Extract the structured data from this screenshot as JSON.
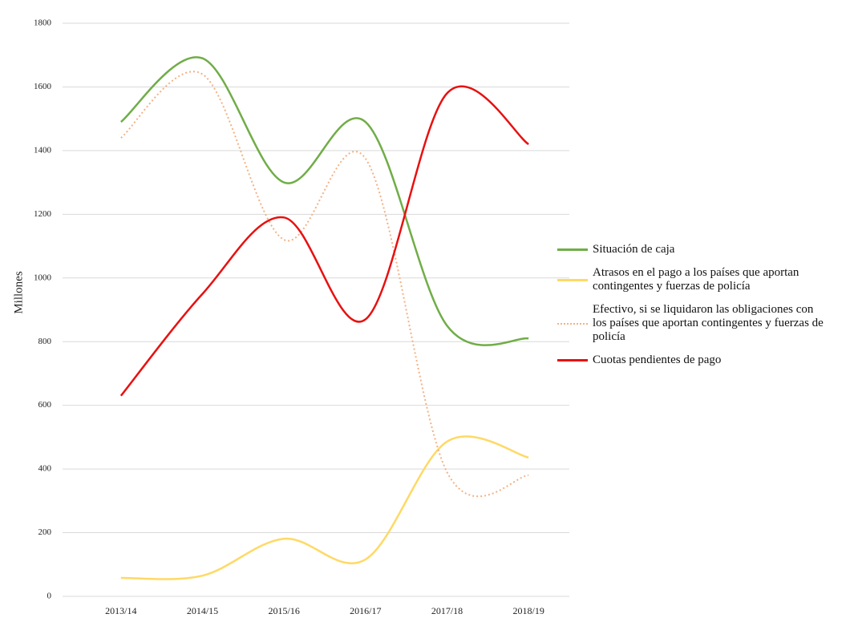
{
  "chart_data": {
    "type": "line",
    "y_label": "Millones",
    "categories": [
      "2013/14",
      "2014/15",
      "2015/16",
      "2016/17",
      "2017/18",
      "2018/19"
    ],
    "series": [
      {
        "name": "Situación de caja",
        "color": "#70ad47",
        "style": "solid",
        "values": [
          1490,
          1690,
          1300,
          1490,
          850,
          810
        ]
      },
      {
        "name": "Atrasos en el pago a los países que aportan contingentes y fuerzas de policía",
        "color": "#ffd966",
        "style": "solid",
        "values": [
          58,
          65,
          181,
          116,
          486,
          436
        ]
      },
      {
        "name": "Efectivo, si se liquidaron las obligaciones con los países que aportan contingentes y fuerzas de policía",
        "color": "#f4b183",
        "style": "dotted",
        "values": [
          1440,
          1640,
          1120,
          1375,
          390,
          380
        ]
      },
      {
        "name": "Cuotas pendientes de pago",
        "color": "#e81010",
        "style": "solid",
        "values": [
          630,
          950,
          1190,
          870,
          1580,
          1420
        ]
      }
    ],
    "ylim": [
      0,
      1800
    ],
    "yticks": [
      0,
      200,
      400,
      600,
      800,
      1000,
      1200,
      1400,
      1600,
      1800
    ],
    "grid": true,
    "legend": "right"
  }
}
